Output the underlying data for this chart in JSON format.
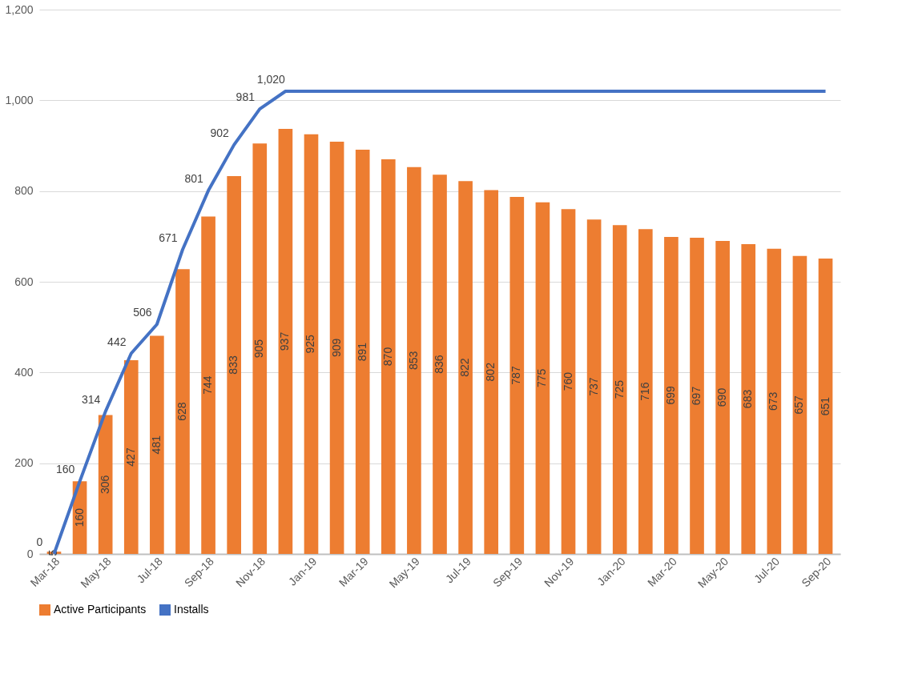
{
  "chart_data": {
    "type": "bar",
    "categories": [
      "Mar-18",
      null,
      "May-18",
      null,
      "Jul-18",
      null,
      "Sep-18",
      null,
      "Nov-18",
      null,
      "Jan-19",
      null,
      "Mar-19",
      null,
      "May-19",
      null,
      "Jul-19",
      null,
      "Sep-19",
      null,
      "Nov-19",
      null,
      "Jan-20",
      null,
      "Mar-20",
      null,
      "May-20",
      null,
      "Jul-20",
      null,
      "Sep-20"
    ],
    "series": [
      {
        "name": "Active Participants",
        "color": "#ed7d31",
        "values": [
          5,
          160,
          306,
          427,
          481,
          628,
          744,
          833,
          905,
          937,
          925,
          909,
          891,
          870,
          853,
          836,
          822,
          802,
          787,
          775,
          760,
          737,
          725,
          716,
          699,
          697,
          690,
          683,
          673,
          657,
          651
        ],
        "value_labels": [
          "5",
          "160",
          "306",
          "427",
          "481",
          "628",
          "744",
          "833",
          "905",
          "937",
          "925",
          "909",
          "891",
          "870",
          "853",
          "836",
          "822",
          "802",
          "787",
          "775",
          "760",
          "737",
          "725",
          "716",
          "699",
          "697",
          "690",
          "683",
          "673",
          "657",
          "651"
        ]
      },
      {
        "name": "Installs",
        "type": "line",
        "color": "#4472c4",
        "values": [
          0,
          160,
          314,
          442,
          506,
          671,
          801,
          902,
          981,
          1020,
          1020,
          1020,
          1020,
          1020,
          1020,
          1020,
          1020,
          1020,
          1020,
          1020,
          1020,
          1020,
          1020,
          1020,
          1020,
          1020,
          1020,
          1020,
          1020,
          1020,
          1020
        ],
        "value_labels": [
          "0",
          "160",
          "314",
          "442",
          "506",
          "671",
          "801",
          "902",
          "981",
          "1,020",
          null,
          null,
          null,
          null,
          null,
          null,
          null,
          null,
          null,
          null,
          null,
          null,
          null,
          null,
          null,
          null,
          null,
          null,
          null,
          null,
          null
        ]
      }
    ],
    "ylim": [
      0,
      1200
    ],
    "yticks": [
      {
        "value": 0,
        "label": "0"
      },
      {
        "value": 200,
        "label": "200"
      },
      {
        "value": 400,
        "label": "400"
      },
      {
        "value": 600,
        "label": "600"
      },
      {
        "value": 800,
        "label": "800"
      },
      {
        "value": 1000,
        "label": "1,000"
      },
      {
        "value": 1200,
        "label": "1,200"
      }
    ],
    "grid": "y",
    "legend": "bottom",
    "line_style": "solid",
    "marker": "none"
  }
}
